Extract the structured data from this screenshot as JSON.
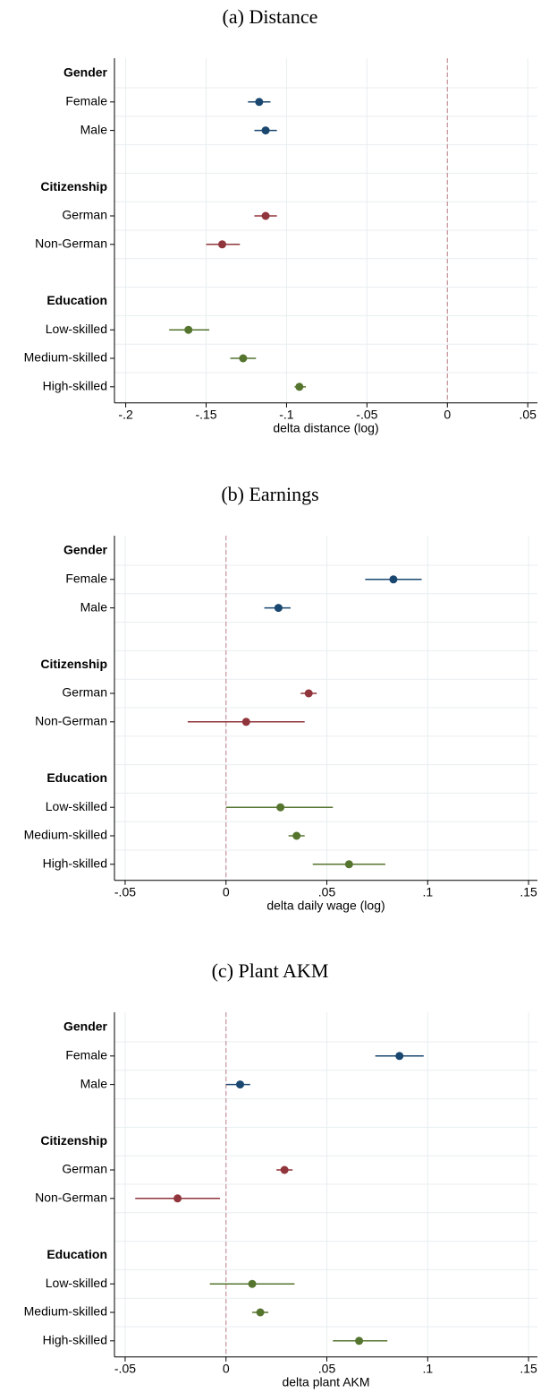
{
  "chart_data": [
    {
      "type": "dot",
      "title": "(a) Distance",
      "x_label": "delta distance (log)",
      "categories": [
        "Gender",
        "Female",
        "Male",
        null,
        "Citizenship",
        "German",
        "Non-German",
        null,
        "Education",
        "Low-skilled",
        "Medium-skilled",
        "High-skilled"
      ],
      "values": [
        null,
        -0.117,
        -0.113,
        null,
        null,
        -0.113,
        -0.14,
        null,
        null,
        -0.161,
        -0.127,
        -0.092
      ],
      "ci_low": [
        null,
        -0.124,
        -0.12,
        null,
        null,
        -0.12,
        -0.15,
        null,
        null,
        -0.173,
        -0.135,
        -0.095
      ],
      "ci_high": [
        null,
        -0.11,
        -0.106,
        null,
        null,
        -0.106,
        -0.129,
        null,
        null,
        -0.148,
        -0.119,
        -0.088
      ],
      "colors": [
        null,
        "#1a476f",
        "#1a476f",
        null,
        null,
        "#90353b",
        "#90353b",
        null,
        null,
        "#55752f",
        "#55752f",
        "#55752f"
      ],
      "xlim": [
        -0.207,
        0.056
      ],
      "xticks": [
        {
          "value": -0.2,
          "label": "-.2"
        },
        {
          "value": -0.15,
          "label": "-.15"
        },
        {
          "value": -0.1,
          "label": "-.1"
        },
        {
          "value": -0.05,
          "label": "-.05"
        },
        0,
        {
          "value": 0.05,
          "label": ".05"
        }
      ],
      "reference_line": 0,
      "reference_color": "#c8949a",
      "grid": true
    },
    {
      "type": "dot",
      "title": "(b) Earnings",
      "x_label": "delta daily wage (log)",
      "categories": [
        "Gender",
        "Female",
        "Male",
        null,
        "Citizenship",
        "German",
        "Non-German",
        null,
        "Education",
        "Low-skilled",
        "Medium-skilled",
        "High-skilled"
      ],
      "values": [
        null,
        0.083,
        0.026,
        null,
        null,
        0.041,
        0.01,
        null,
        null,
        0.027,
        0.035,
        0.061
      ],
      "ci_low": [
        null,
        0.069,
        0.019,
        null,
        null,
        0.037,
        -0.019,
        null,
        null,
        0.0,
        0.031,
        0.043
      ],
      "ci_high": [
        null,
        0.097,
        0.032,
        null,
        null,
        0.045,
        0.039,
        null,
        null,
        0.053,
        0.039,
        0.079
      ],
      "colors": [
        null,
        "#1a476f",
        "#1a476f",
        null,
        null,
        "#90353b",
        "#90353b",
        null,
        null,
        "#55752f",
        "#55752f",
        "#55752f"
      ],
      "xlim": [
        -0.0553,
        0.1544
      ],
      "xticks": [
        {
          "value": -0.05,
          "label": "-.05"
        },
        0,
        {
          "value": 0.05,
          "label": ".05"
        },
        {
          "value": 0.1,
          "label": ".1"
        },
        {
          "value": 0.15,
          "label": ".15"
        }
      ],
      "reference_line": 0,
      "reference_color": "#c8949a",
      "grid": true
    },
    {
      "type": "dot",
      "title": "(c) Plant AKM",
      "x_label": "delta plant AKM",
      "categories": [
        "Gender",
        "Female",
        "Male",
        null,
        "Citizenship",
        "German",
        "Non-German",
        null,
        "Education",
        "Low-skilled",
        "Medium-skilled",
        "High-skilled"
      ],
      "values": [
        null,
        0.086,
        0.007,
        null,
        null,
        0.029,
        -0.024,
        null,
        null,
        0.013,
        0.017,
        0.066
      ],
      "ci_low": [
        null,
        0.074,
        0.0,
        null,
        null,
        0.025,
        -0.045,
        null,
        null,
        -0.008,
        0.013,
        0.053
      ],
      "ci_high": [
        null,
        0.098,
        0.012,
        null,
        null,
        0.033,
        -0.003,
        null,
        null,
        0.034,
        0.021,
        0.08
      ],
      "colors": [
        null,
        "#1a476f",
        "#1a476f",
        null,
        null,
        "#90353b",
        "#90353b",
        null,
        null,
        "#55752f",
        "#55752f",
        "#55752f"
      ],
      "xlim": [
        -0.0553,
        0.1544
      ],
      "xticks": [
        {
          "value": -0.05,
          "label": "-.05"
        },
        0,
        {
          "value": 0.05,
          "label": ".05"
        },
        {
          "value": 0.1,
          "label": ".1"
        },
        {
          "value": 0.15,
          "label": ".15"
        }
      ],
      "reference_line": 0,
      "reference_color": "#c8949a",
      "grid": true
    }
  ]
}
